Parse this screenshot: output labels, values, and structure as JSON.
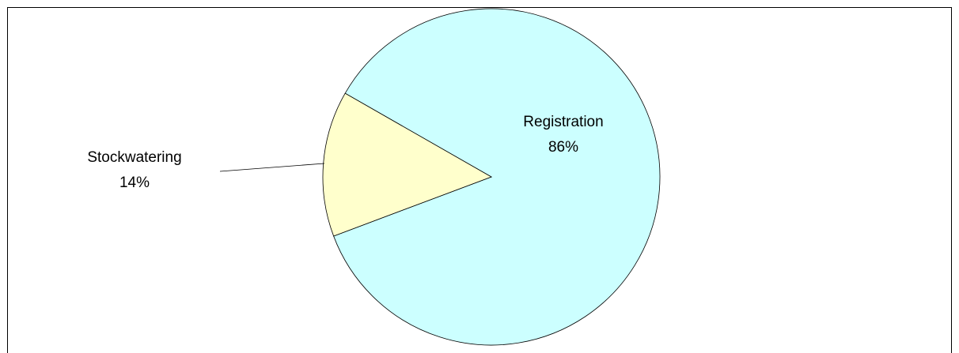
{
  "chart_data": {
    "type": "pie",
    "categories": [
      "Registration",
      "Stockwatering"
    ],
    "values": [
      86,
      14
    ],
    "value_labels": [
      "86%",
      "14%"
    ],
    "colors": [
      "#ccffff",
      "#ffffcc"
    ]
  }
}
